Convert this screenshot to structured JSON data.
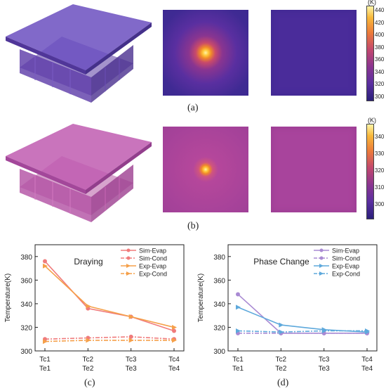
{
  "labels": {
    "a": "(a)",
    "b": "(b)",
    "c": "(c)",
    "d": "(d)"
  },
  "colorbars": [
    {
      "unit": "(K)",
      "ticks": [
        300,
        320,
        340,
        360,
        380,
        400,
        420,
        440
      ]
    },
    {
      "unit": "(K)",
      "ticks": [
        300,
        310,
        320,
        330,
        340
      ]
    }
  ],
  "chart_data": [
    {
      "type": "line",
      "title": "Draying",
      "ylabel": "Temperature(K)",
      "xlabel": "",
      "ylim": [
        300,
        390
      ],
      "yticks": [
        300,
        320,
        340,
        360,
        380
      ],
      "categories": [
        {
          "top": "Tc1",
          "bottom": "Te1"
        },
        {
          "top": "Tc2",
          "bottom": "Te2"
        },
        {
          "top": "Tc3",
          "bottom": "Te3"
        },
        {
          "top": "Tc4",
          "bottom": "Te4"
        }
      ],
      "legend_position": "top-right",
      "series": [
        {
          "name": "Sim-Evap",
          "values": [
            376,
            336,
            329,
            317
          ],
          "color": "#f07b7b",
          "dash": "solid",
          "marker": "circle"
        },
        {
          "name": "Sim-Cond",
          "values": [
            310,
            311,
            312,
            310
          ],
          "color": "#f07b7b",
          "dash": "dashdot",
          "marker": "circle"
        },
        {
          "name": "Exp-Evap",
          "values": [
            372,
            338,
            329,
            320
          ],
          "color": "#f5a04a",
          "dash": "solid",
          "marker": "triangle"
        },
        {
          "name": "Exp-Cond",
          "values": [
            308,
            309,
            309,
            309
          ],
          "color": "#f5a04a",
          "dash": "dashdot",
          "marker": "triangle"
        }
      ]
    },
    {
      "type": "line",
      "title": "Phase Change",
      "ylabel": "Temperature(K)",
      "xlabel": "",
      "ylim": [
        300,
        390
      ],
      "yticks": [
        300,
        320,
        340,
        360,
        380
      ],
      "categories": [
        {
          "top": "Tc1",
          "bottom": "Te1"
        },
        {
          "top": "Tc2",
          "bottom": "Te2"
        },
        {
          "top": "Tc3",
          "bottom": "Te3"
        },
        {
          "top": "Tc4",
          "bottom": "Te4"
        }
      ],
      "legend_position": "top-right",
      "series": [
        {
          "name": "Sim-Evap",
          "values": [
            348,
            315,
            315,
            315
          ],
          "color": "#a98ad3",
          "dash": "solid",
          "marker": "circle"
        },
        {
          "name": "Sim-Cond",
          "values": [
            315,
            315,
            315,
            315
          ],
          "color": "#a98ad3",
          "dash": "dashdot",
          "marker": "circle"
        },
        {
          "name": "Exp-Evap",
          "values": [
            337,
            322,
            318,
            316
          ],
          "color": "#5ea9dc",
          "dash": "solid",
          "marker": "triangle"
        },
        {
          "name": "Exp-Cond",
          "values": [
            317,
            316,
            317,
            317
          ],
          "color": "#5ea9dc",
          "dash": "dashdot",
          "marker": "triangle"
        }
      ]
    }
  ]
}
